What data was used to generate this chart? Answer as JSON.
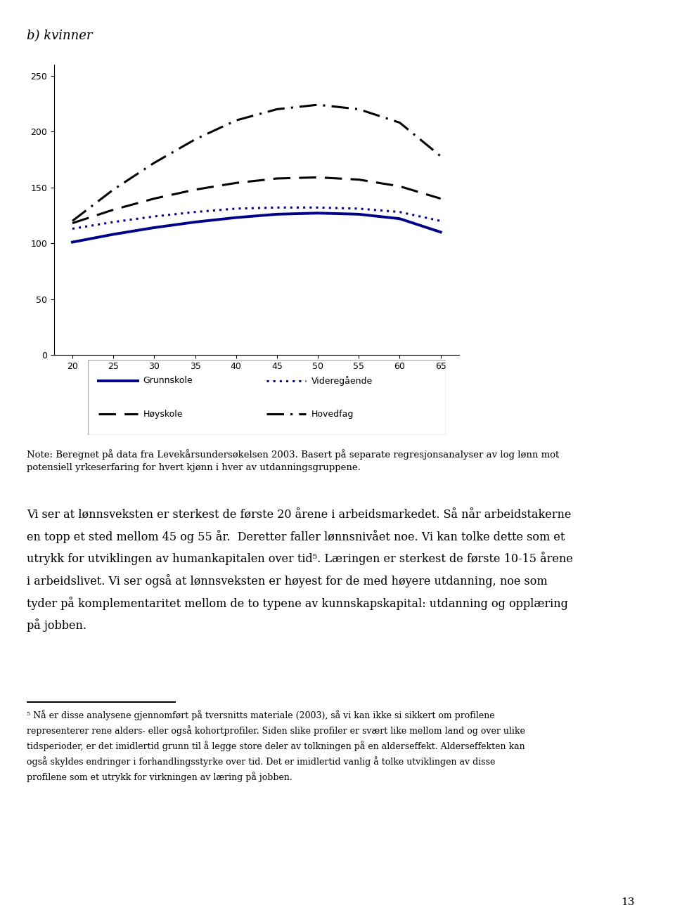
{
  "title": "b) kvinner",
  "x_values": [
    20,
    25,
    30,
    35,
    40,
    45,
    50,
    55,
    60,
    65
  ],
  "grunnskole": [
    101,
    108,
    114,
    119,
    123,
    126,
    127,
    126,
    122,
    110
  ],
  "videregaende": [
    113,
    119,
    124,
    128,
    131,
    132,
    132,
    131,
    128,
    120
  ],
  "hoyskole": [
    118,
    130,
    140,
    148,
    154,
    158,
    159,
    157,
    151,
    140
  ],
  "hovedfag": [
    120,
    148,
    172,
    193,
    210,
    220,
    224,
    220,
    208,
    178
  ],
  "ylim": [
    0,
    260
  ],
  "yticks": [
    0,
    50,
    100,
    150,
    200,
    250
  ],
  "xticks": [
    20,
    25,
    30,
    35,
    40,
    45,
    50,
    55,
    60,
    65
  ],
  "note_text": "Note: Beregnet på data fra Levekårsundersøkelsen 2003. Basert på separate regresjonsanalyser av log lønn mot\npotensiell yrkeserfaring for hvert kjønn i hver av utdanningsgruppene.",
  "para1": "Vi ser at lønnsveksten er sterkest de første 20 årene i arbeidsmarkedet. Så når arbeidstakerne\nen topp et sted mellom 45 og 55 år.  Deretter faller lønnsnivået noe. Vi kan tolke dette som et\nutrykk for utviklingen av humankapitalen over tid⁵. Læringen er sterkest de første 10-15 årene\ni arbeidslivet. Vi ser også at lønnsveksten er høyest for de med høyere utdanning, noe som\ntyder på komplementaritet mellom de to typene av kunnskapskapital: utdanning og opplæring\npå jobben.",
  "footnote": "⁵ Nå er disse analysene gjennomført på tversnitts materiale (2003), så vi kan ikke si sikkert om profilene\nrepresenterer rene alders- eller også kohortprofiler. Siden slike profiler er svært like mellom land og over ulike\ntidsperioder, er det imidlertid grunn til å legge store deler av tolkningen på en alderseffekt. Alderseffekten kan\nogså skyldes endringer i forhandlingsstyrke over tid. Det er imidlertid vanlig å tolke utviklingen av disse\nprofilene som et utrykk for virkningen av læring på jobben.",
  "page_number": "13",
  "legend_labels": [
    "Grunnskole",
    "Videregående",
    "Høyskole",
    "Hovedfag"
  ],
  "grunnskole_color": "#00008B",
  "videregaende_color": "#00008B",
  "hoyskole_color": "#000000",
  "hovedfag_color": "#000000",
  "background_color": "#ffffff"
}
